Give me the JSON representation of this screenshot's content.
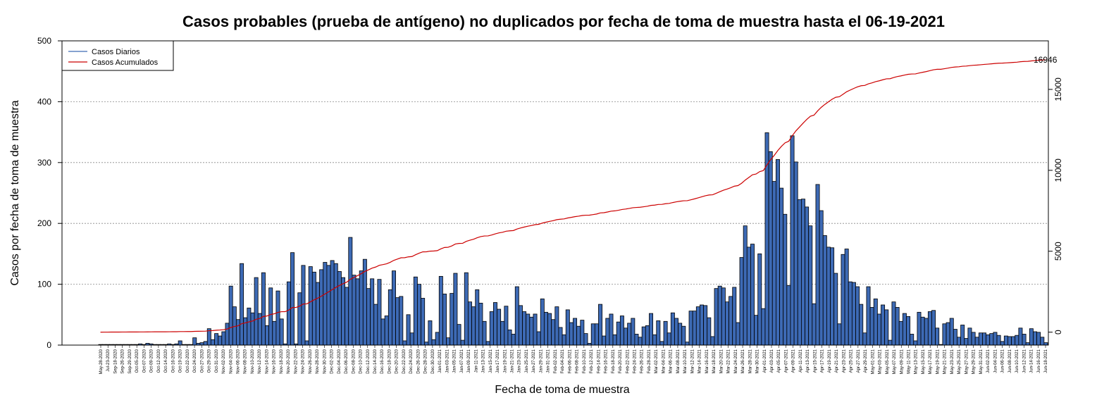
{
  "chart_data": {
    "type": "bar",
    "title": "Casos probables (prueba de antígeno) no duplicados por fecha de toma de muestra hasta el 06-19-2021",
    "xlabel": "Fecha de toma de muestra",
    "ylabel": "Casos por fecha de toma de muestra",
    "ylim": [
      0,
      500
    ],
    "yticks": [
      0,
      100,
      200,
      300,
      400,
      500
    ],
    "y2lim": [
      -800,
      18000
    ],
    "y2ticks": [
      0,
      5000,
      10000,
      15000
    ],
    "grid": "horizontal dotted",
    "legend_position": "top-left",
    "start_date": "2020-05-28",
    "end_date": "2021-06-18",
    "tick_labels": [
      "May-28-2020",
      "Jul-23-2020",
      "Sep-18-2020",
      "Sep-26-2020",
      "Sep-29-2020",
      "Oct-05-2020",
      "Oct-07-2020",
      "Oct-09-2020",
      "Oct-12-2020",
      "Oct-14-2020",
      "Oct-16-2020",
      "Oct-19-2020",
      "Oct-22-2020",
      "Oct-24-2020",
      "Oct-27-2020",
      "Oct-29-2020",
      "Oct-31-2020",
      "Nov-02-2020",
      "Nov-04-2020",
      "Nov-06-2020",
      "Nov-08-2020",
      "Nov-10-2020",
      "Nov-12-2020",
      "Nov-14-2020",
      "Nov-16-2020",
      "Nov-18-2020",
      "Nov-20-2020",
      "Nov-22-2020",
      "Nov-24-2020",
      "Nov-26-2020",
      "Nov-28-2020",
      "Nov-30-2020",
      "Dec-02-2020",
      "Dec-04-2020",
      "Dec-06-2020",
      "Dec-08-2020",
      "Dec-10-2020",
      "Dec-12-2020",
      "Dec-14-2020",
      "Dec-16-2020",
      "Dec-18-2020",
      "Dec-20-2020",
      "Dec-22-2020",
      "Dec-24-2020",
      "Dec-26-2020",
      "Dec-28-2020",
      "Dec-30-2020",
      "Jan-01-2021",
      "Jan-03-2021",
      "Jan-05-2021",
      "Jan-07-2021",
      "Jan-09-2021",
      "Jan-11-2021",
      "Jan-13-2021",
      "Jan-15-2021",
      "Jan-17-2021",
      "Jan-19-2021",
      "Jan-21-2021",
      "Jan-23-2021",
      "Jan-25-2021",
      "Jan-27-2021",
      "Jan-29-2021",
      "Jan-31-2021",
      "Feb-02-2021",
      "Feb-04-2021",
      "Feb-06-2021",
      "Feb-08-2021",
      "Feb-10-2021",
      "Feb-12-2021",
      "Feb-14-2021",
      "Feb-16-2021",
      "Feb-18-2021",
      "Feb-20-2021",
      "Feb-22-2021",
      "Feb-24-2021",
      "Feb-26-2021",
      "Feb-28-2021",
      "Mar-02-2021",
      "Mar-04-2021",
      "Mar-06-2021",
      "Mar-08-2021",
      "Mar-10-2021",
      "Mar-12-2021",
      "Mar-14-2021",
      "Mar-16-2021",
      "Mar-18-2021",
      "Mar-20-2021",
      "Mar-22-2021",
      "Mar-24-2021",
      "Mar-26-2021",
      "Mar-28-2021",
      "Mar-30-2021",
      "Apr-01-2021",
      "Apr-03-2021",
      "Apr-05-2021",
      "Apr-07-2021",
      "Apr-09-2021",
      "Apr-11-2021",
      "Apr-13-2021",
      "Apr-15-2021",
      "Apr-17-2021",
      "Apr-19-2021",
      "Apr-21-2021",
      "Apr-23-2021",
      "Apr-25-2021",
      "Apr-27-2021",
      "Apr-29-2021",
      "May-01-2021",
      "May-03-2021",
      "May-05-2021",
      "May-07-2021",
      "May-09-2021",
      "May-11-2021",
      "May-13-2021",
      "May-15-2021",
      "May-17-2021",
      "May-19-2021",
      "May-21-2021",
      "May-23-2021",
      "May-25-2021",
      "May-27-2021",
      "May-29-2021",
      "May-31-2021",
      "Jun-02-2021",
      "Jun-04-2021",
      "Jun-06-2021",
      "Jun-08-2021",
      "Jun-10-2021",
      "Jun-12-2021",
      "Jun-14-2021",
      "Jun-16-2021",
      "Jun-18-2021"
    ],
    "series": [
      {
        "name": "Casos Diarios",
        "type": "bar",
        "color": "#3d6ab5",
        "values": [
          1,
          1,
          1,
          1,
          1,
          1,
          1,
          1,
          1,
          1,
          1,
          2,
          1,
          3,
          2,
          1,
          1,
          1,
          1,
          2,
          1,
          2,
          7,
          1,
          1,
          1,
          12,
          3,
          4,
          6,
          27,
          9,
          19,
          15,
          22,
          36,
          97,
          63,
          42,
          134,
          45,
          61,
          53,
          111,
          52,
          119,
          32,
          94,
          39,
          89,
          43,
          2,
          104,
          152,
          2,
          86,
          131,
          7,
          129,
          120,
          103,
          124,
          136,
          131,
          139,
          134,
          121,
          111,
          95,
          177,
          115,
          109,
          122,
          141,
          93,
          109,
          67,
          108,
          43,
          48,
          91,
          122,
          78,
          80,
          7,
          50,
          20,
          112,
          100,
          77,
          5,
          40,
          9,
          21,
          113,
          84,
          12,
          85,
          118,
          34,
          8,
          119,
          71,
          63,
          91,
          69,
          39,
          6,
          55,
          70,
          59,
          39,
          64,
          25,
          18,
          96,
          65,
          55,
          51,
          46,
          51,
          22,
          76,
          54,
          52,
          42,
          63,
          29,
          17,
          58,
          37,
          44,
          31,
          41,
          19,
          3,
          35,
          35,
          67,
          15,
          44,
          51,
          17,
          38,
          48,
          28,
          36,
          44,
          18,
          13,
          30,
          32,
          52,
          17,
          40,
          6,
          39,
          20,
          53,
          44,
          36,
          31,
          5,
          56,
          56,
          63,
          66,
          65,
          45,
          14,
          93,
          97,
          94,
          71,
          80,
          95,
          37,
          144,
          196,
          161,
          166,
          49,
          150,
          60,
          349,
          318,
          269,
          305,
          258,
          215,
          98,
          344,
          301,
          239,
          240,
          227,
          196,
          68,
          264,
          221,
          180,
          161,
          160,
          118,
          35,
          149,
          158,
          104,
          103,
          96,
          67,
          20,
          96,
          62,
          76,
          51,
          66,
          58,
          8,
          71,
          62,
          39,
          52,
          47,
          18,
          7,
          54,
          46,
          44,
          55,
          57,
          28,
          1,
          35,
          37,
          44,
          26,
          13,
          33,
          11,
          28,
          21,
          13,
          20,
          20,
          17,
          19,
          21,
          16,
          6,
          15,
          14,
          14,
          16,
          28,
          18,
          4,
          27,
          22,
          21,
          13,
          4
        ]
      },
      {
        "name": "Casos Acumulados",
        "type": "line",
        "color": "#cc0000",
        "end_label": "16946"
      }
    ]
  }
}
